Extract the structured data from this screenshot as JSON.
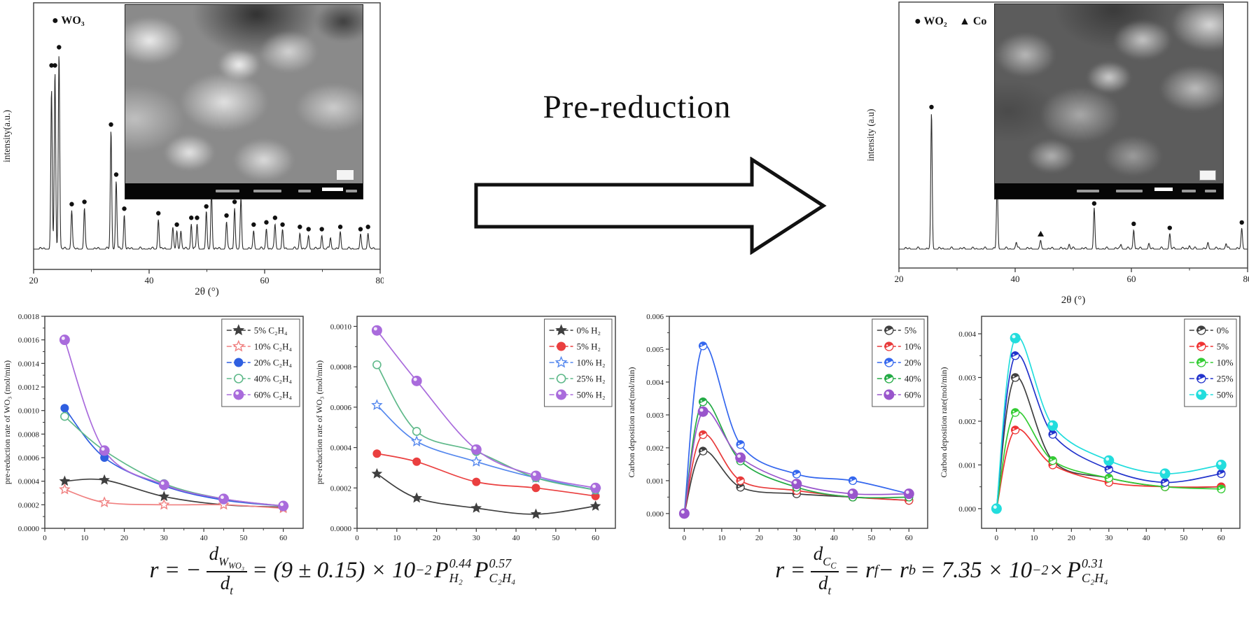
{
  "arrow": {
    "label": "Pre-reduction"
  },
  "equations": {
    "eq1": {
      "lhs": "r = −",
      "num_base": "d",
      "num_sub": "W",
      "num_subsub": "WO₃",
      "den_base": "d",
      "den_sub": "t",
      "mid": "= (9 ± 0.15) × 10",
      "mid_exp": "−2",
      "p1_base": "P",
      "p1_sup": "0.44",
      "p1_sub": "H₂",
      "p2_base": "P",
      "p2_sup": "0.57",
      "p2_sub": "C₂H₄"
    },
    "eq2": {
      "lhs": "r =",
      "num_base": "d",
      "num_sub": "C",
      "num_subsub": "C",
      "den_base": "d",
      "den_sub": "t",
      "mid1": "= r",
      "mid1_sub": "f",
      "mid2": " − r",
      "mid2_sub": "b",
      "mid3": "= 7.35 × 10",
      "mid3_exp": "−2",
      "times": " × ",
      "p_base": "P",
      "p_sup": "0.31",
      "p_sub": "C₂H₄"
    }
  },
  "chart_data": [
    {
      "type": "xrd",
      "legend": [
        {
          "symbol": "●",
          "label": "WO₃"
        }
      ],
      "xlabel": "2θ (°)",
      "ylabel": "intensity(a.u.)",
      "xlim": [
        20,
        80
      ],
      "xticks": [
        20,
        40,
        60,
        80
      ],
      "xminor": [
        30,
        50,
        70
      ],
      "peaks": [
        [
          23.1,
          0.7
        ],
        [
          23.7,
          0.78
        ],
        [
          24.4,
          0.86
        ],
        [
          26.6,
          0.17
        ],
        [
          28.8,
          0.18
        ],
        [
          33.4,
          0.52
        ],
        [
          34.3,
          0.3
        ],
        [
          35.7,
          0.15
        ],
        [
          41.6,
          0.13
        ],
        [
          44.1,
          0.09
        ],
        [
          44.8,
          0.08
        ],
        [
          45.5,
          0.08
        ],
        [
          47.3,
          0.11
        ],
        [
          48.3,
          0.11
        ],
        [
          49.9,
          0.16
        ],
        [
          50.8,
          0.26
        ],
        [
          53.4,
          0.12
        ],
        [
          54.8,
          0.18
        ],
        [
          55.9,
          0.22
        ],
        [
          58.1,
          0.08
        ],
        [
          60.3,
          0.09
        ],
        [
          61.8,
          0.11
        ],
        [
          63.1,
          0.08
        ],
        [
          66.1,
          0.07
        ],
        [
          67.6,
          0.06
        ],
        [
          69.9,
          0.06
        ],
        [
          71.4,
          0.05
        ],
        [
          73.1,
          0.07
        ],
        [
          76.6,
          0.06
        ],
        [
          77.9,
          0.07
        ]
      ],
      "dots": [
        23.1,
        23.7,
        24.4,
        26.6,
        28.8,
        33.4,
        34.3,
        35.7,
        41.6,
        44.8,
        47.3,
        48.3,
        49.9,
        50.8,
        53.4,
        54.8,
        55.9,
        58.1,
        60.3,
        61.8,
        63.1,
        66.1,
        67.6,
        69.9,
        73.1,
        76.6,
        77.9
      ],
      "triangles": []
    },
    {
      "type": "xrd",
      "legend": [
        {
          "symbol": "●",
          "label": "WO₂"
        },
        {
          "symbol": "▲",
          "label": "Co"
        }
      ],
      "xlabel": "2θ (°)",
      "ylabel": "intensity (a.u)",
      "xlim": [
        20,
        80
      ],
      "xticks": [
        20,
        40,
        60,
        80
      ],
      "xminor": [
        30,
        50,
        70
      ],
      "peaks": [
        [
          25.6,
          1.0
        ],
        [
          36.9,
          0.48
        ],
        [
          40.2,
          0.05
        ],
        [
          44.4,
          0.055
        ],
        [
          49.3,
          0.035
        ],
        [
          53.6,
          0.29
        ],
        [
          58.2,
          0.035
        ],
        [
          60.4,
          0.14
        ],
        [
          63.0,
          0.03
        ],
        [
          66.6,
          0.11
        ],
        [
          70.0,
          0.025
        ],
        [
          73.2,
          0.04
        ],
        [
          76.3,
          0.04
        ],
        [
          79.0,
          0.15
        ]
      ],
      "dots": [
        25.6,
        36.9,
        53.6,
        60.4,
        66.6,
        79.0
      ],
      "triangles": [
        44.4
      ]
    },
    {
      "type": "line",
      "ylabel": "pre-reduction rate of WO₃ (mol/min)",
      "xlabel": "",
      "xlim": [
        0,
        65
      ],
      "ylim": [
        0,
        0.0018
      ],
      "xticks": [
        0,
        10,
        20,
        30,
        40,
        50,
        60
      ],
      "yticks": [
        0.0,
        0.0002,
        0.0004,
        0.0006,
        0.0008,
        0.001,
        0.0012,
        0.0014,
        0.0016,
        0.0018
      ],
      "ydecimals": 4,
      "x": [
        5,
        15,
        30,
        45,
        60
      ],
      "series": [
        {
          "name": "5% C₂H₄",
          "color": "#3f3f3f",
          "marker": "star",
          "values": [
            0.0004,
            0.00041,
            0.00027,
            0.0002,
            0.00018
          ]
        },
        {
          "name": "10% C₂H₄",
          "color": "#f08080",
          "marker": "star-open",
          "values": [
            0.00033,
            0.00022,
            0.0002,
            0.0002,
            0.00017
          ]
        },
        {
          "name": "20% C₂H₄",
          "color": "#2f5fe0",
          "marker": "circle",
          "values": [
            0.00102,
            0.0006,
            0.00036,
            0.00024,
            0.00019
          ]
        },
        {
          "name": "40% C₂H₄",
          "color": "#5fb98a",
          "marker": "circle-open",
          "values": [
            0.00095,
            0.00066,
            0.00038,
            0.00025,
            0.00019
          ]
        },
        {
          "name": "60% C₂H₄",
          "color": "#a96bdc",
          "marker": "sphere",
          "values": [
            0.0016,
            0.00066,
            0.00037,
            0.00025,
            0.00019
          ]
        }
      ]
    },
    {
      "type": "line",
      "ylabel": "pre-reduction rate of WO₃ (mol/min)",
      "xlabel": "",
      "xlim": [
        0,
        65
      ],
      "ylim": [
        0,
        0.00105
      ],
      "xticks": [
        0,
        10,
        20,
        30,
        40,
        50,
        60
      ],
      "yticks": [
        0.0,
        0.0002,
        0.0004,
        0.0006,
        0.0008,
        0.001
      ],
      "ydecimals": 4,
      "x": [
        5,
        15,
        30,
        45,
        60
      ],
      "series": [
        {
          "name": "0% H₂",
          "color": "#3f3f3f",
          "marker": "star",
          "values": [
            0.00027,
            0.00015,
            0.0001,
            7e-05,
            0.00011
          ]
        },
        {
          "name": "5% H₂",
          "color": "#ea3f3f",
          "marker": "circle",
          "values": [
            0.00037,
            0.00033,
            0.00023,
            0.0002,
            0.00016
          ]
        },
        {
          "name": "10% H₂",
          "color": "#5588ee",
          "marker": "star-open",
          "values": [
            0.00061,
            0.00043,
            0.00033,
            0.00025,
            0.00019
          ]
        },
        {
          "name": "25% H₂",
          "color": "#5fb98a",
          "marker": "circle-open",
          "values": [
            0.00081,
            0.00048,
            0.00038,
            0.00025,
            0.00019
          ]
        },
        {
          "name": "50% H₂",
          "color": "#a96bdc",
          "marker": "sphere",
          "values": [
            0.00098,
            0.00073,
            0.00039,
            0.00026,
            0.0002
          ]
        }
      ]
    },
    {
      "type": "line",
      "ylabel": "Carbon deposition rate(mol/min)",
      "xlabel": "",
      "xlim": [
        -4,
        65
      ],
      "ylim": [
        -0.00045,
        0.006
      ],
      "xticks": [
        0,
        10,
        20,
        30,
        40,
        50,
        60
      ],
      "yticks": [
        0.0,
        0.001,
        0.002,
        0.003,
        0.004,
        0.005,
        0.006
      ],
      "ydecimals": 3,
      "x": [
        0,
        5,
        15,
        30,
        45,
        60
      ],
      "series": [
        {
          "name": "5%",
          "color": "#3f3f3f",
          "marker": "half",
          "values": [
            0,
            0.0019,
            0.0008,
            0.0006,
            0.0005,
            0.0004
          ]
        },
        {
          "name": "10%",
          "color": "#e83a3a",
          "marker": "half",
          "values": [
            0,
            0.0024,
            0.001,
            0.0007,
            0.0005,
            0.0004
          ]
        },
        {
          "name": "20%",
          "color": "#3366ee",
          "marker": "half",
          "values": [
            0,
            0.0051,
            0.0021,
            0.0012,
            0.001,
            0.0006
          ]
        },
        {
          "name": "40%",
          "color": "#22aa44",
          "marker": "half",
          "values": [
            0,
            0.0034,
            0.0016,
            0.0008,
            0.0005,
            0.0005
          ]
        },
        {
          "name": "60%",
          "color": "#9955cc",
          "marker": "sphere",
          "values": [
            0,
            0.0031,
            0.0017,
            0.0009,
            0.0006,
            0.0006
          ]
        }
      ]
    },
    {
      "type": "line",
      "ylabel": "Carbon deposition rate(mol/min)",
      "xlabel": "",
      "xlim": [
        -4,
        65
      ],
      "ylim": [
        -0.00045,
        0.0044
      ],
      "xticks": [
        0,
        10,
        20,
        30,
        40,
        50,
        60
      ],
      "yticks": [
        0.0,
        0.001,
        0.002,
        0.003,
        0.004
      ],
      "ydecimals": 3,
      "x": [
        0,
        5,
        15,
        30,
        45,
        60
      ],
      "series": [
        {
          "name": "0%",
          "color": "#3f3f3f",
          "marker": "half",
          "values": [
            0,
            0.003,
            0.0011,
            0.0007,
            0.0005,
            0.0005
          ]
        },
        {
          "name": "5%",
          "color": "#ef3333",
          "marker": "half",
          "values": [
            0,
            0.0018,
            0.001,
            0.0006,
            0.0005,
            0.0005
          ]
        },
        {
          "name": "10%",
          "color": "#33cc33",
          "marker": "half",
          "values": [
            0,
            0.0022,
            0.0011,
            0.0007,
            0.0005,
            0.00045
          ]
        },
        {
          "name": "25%",
          "color": "#2233cc",
          "marker": "half",
          "values": [
            0,
            0.0035,
            0.0017,
            0.0009,
            0.0006,
            0.0008
          ]
        },
        {
          "name": "50%",
          "color": "#22dddd",
          "marker": "sphere",
          "values": [
            0,
            0.0039,
            0.0019,
            0.0011,
            0.0008,
            0.001
          ]
        }
      ]
    }
  ]
}
